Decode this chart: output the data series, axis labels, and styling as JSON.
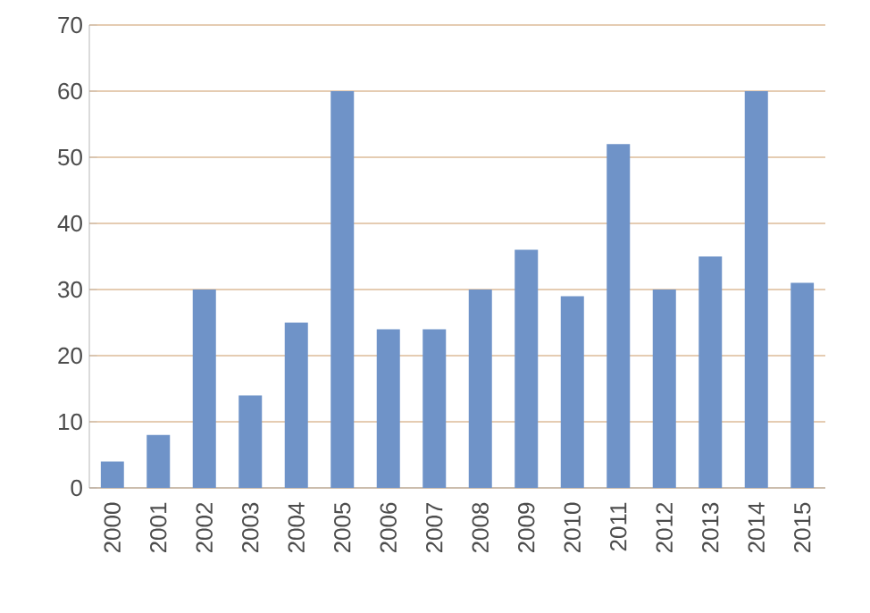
{
  "chart_data": {
    "type": "bar",
    "categories": [
      "2000",
      "2001",
      "2002",
      "2003",
      "2004",
      "2005",
      "2006",
      "2007",
      "2008",
      "2009",
      "2010",
      "2011",
      "2012",
      "2013",
      "2014",
      "2015"
    ],
    "values": [
      4,
      8,
      30,
      14,
      25,
      60,
      24,
      24,
      30,
      36,
      29,
      52,
      30,
      35,
      60,
      31
    ],
    "color": "#6f93c8",
    "ylim": [
      0,
      70
    ],
    "yticks": [
      0,
      10,
      20,
      30,
      40,
      50,
      60,
      70
    ],
    "grid": "y"
  }
}
